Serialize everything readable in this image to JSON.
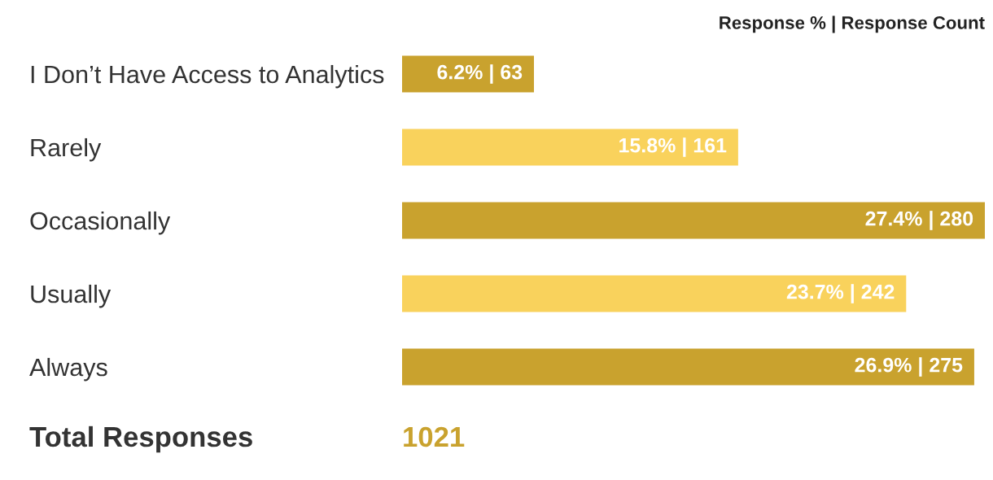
{
  "chart_data": {
    "type": "bar",
    "orientation": "horizontal",
    "categories": [
      "I Don’t Have Access to Analytics",
      "Rarely",
      "Occasionally",
      "Usually",
      "Always"
    ],
    "values": [
      6.2,
      15.8,
      27.4,
      23.7,
      26.9
    ],
    "colors": [
      "#c9a22e",
      "#f9d25c",
      "#c9a22e",
      "#f9d25c",
      "#c9a22e"
    ],
    "value_labels": [
      "6.2% | 63",
      "15.8% | 161",
      "27.4% | 280",
      "23.7% | 242",
      "26.9% | 275"
    ],
    "grid": false,
    "legend": false,
    "annotations": [
      "Response % | Response Count",
      "Total Responses",
      "1021"
    ]
  }
}
